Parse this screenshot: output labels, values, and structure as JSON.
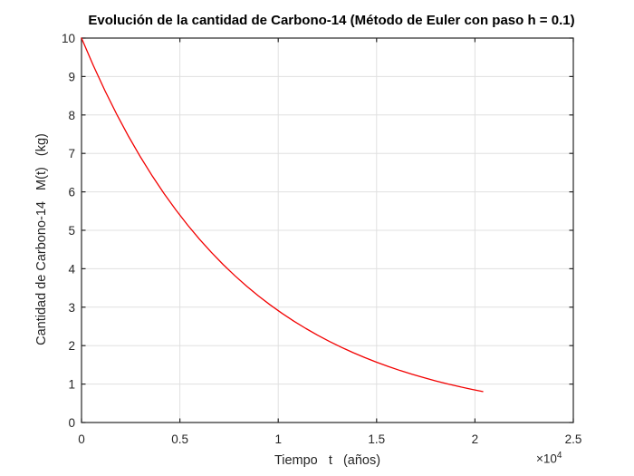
{
  "chart_data": {
    "type": "line",
    "title": "Evolución de la cantidad de Carbono-14 (Método de Euler con paso h = 0.1)",
    "xlabel": "Tiempo   t   (años)",
    "ylabel": "Cantidad de Carbono-14   M(t)   (kg)",
    "x_axis_multiplier_base": "×10",
    "x_axis_multiplier_exp": "4",
    "xlim": [
      0,
      25000
    ],
    "ylim": [
      0,
      10
    ],
    "xticks": [
      0,
      5000,
      10000,
      15000,
      20000,
      25000
    ],
    "xtick_labels": [
      "0",
      "0.5",
      "1",
      "1.5",
      "2",
      "2.5"
    ],
    "yticks": [
      0,
      1,
      2,
      3,
      4,
      5,
      6,
      7,
      8,
      9,
      10
    ],
    "ytick_labels": [
      "0",
      "1",
      "2",
      "3",
      "4",
      "5",
      "6",
      "7",
      "8",
      "9",
      "10"
    ],
    "grid": true,
    "series": [
      {
        "x": [
          0,
          600,
          1200,
          1800,
          2400,
          3000,
          3600,
          4200,
          4800,
          5400,
          6000,
          6600,
          7200,
          7800,
          8400,
          9000,
          9600,
          10200,
          10800,
          11400,
          12000,
          12600,
          13200,
          13800,
          14400,
          15000,
          15600,
          16200,
          16800,
          17400,
          18000,
          18600,
          19200,
          19800,
          20400
        ],
        "y": [
          10.0,
          9.286,
          8.623,
          8.007,
          7.435,
          6.904,
          6.411,
          5.953,
          5.528,
          5.133,
          4.766,
          4.426,
          4.11,
          3.816,
          3.544,
          3.291,
          3.056,
          2.837,
          2.635,
          2.447,
          2.272,
          2.11,
          1.959,
          1.819,
          1.689,
          1.568,
          1.456,
          1.352,
          1.256,
          1.166,
          1.083,
          1.005,
          0.934,
          0.867,
          0.805
        ]
      }
    ],
    "colors": {
      "line": "#f20000",
      "grid": "#e0e0e0",
      "axis": "#262626",
      "tick_text": "#262626",
      "title_text": "#000000",
      "background": "#ffffff"
    }
  }
}
